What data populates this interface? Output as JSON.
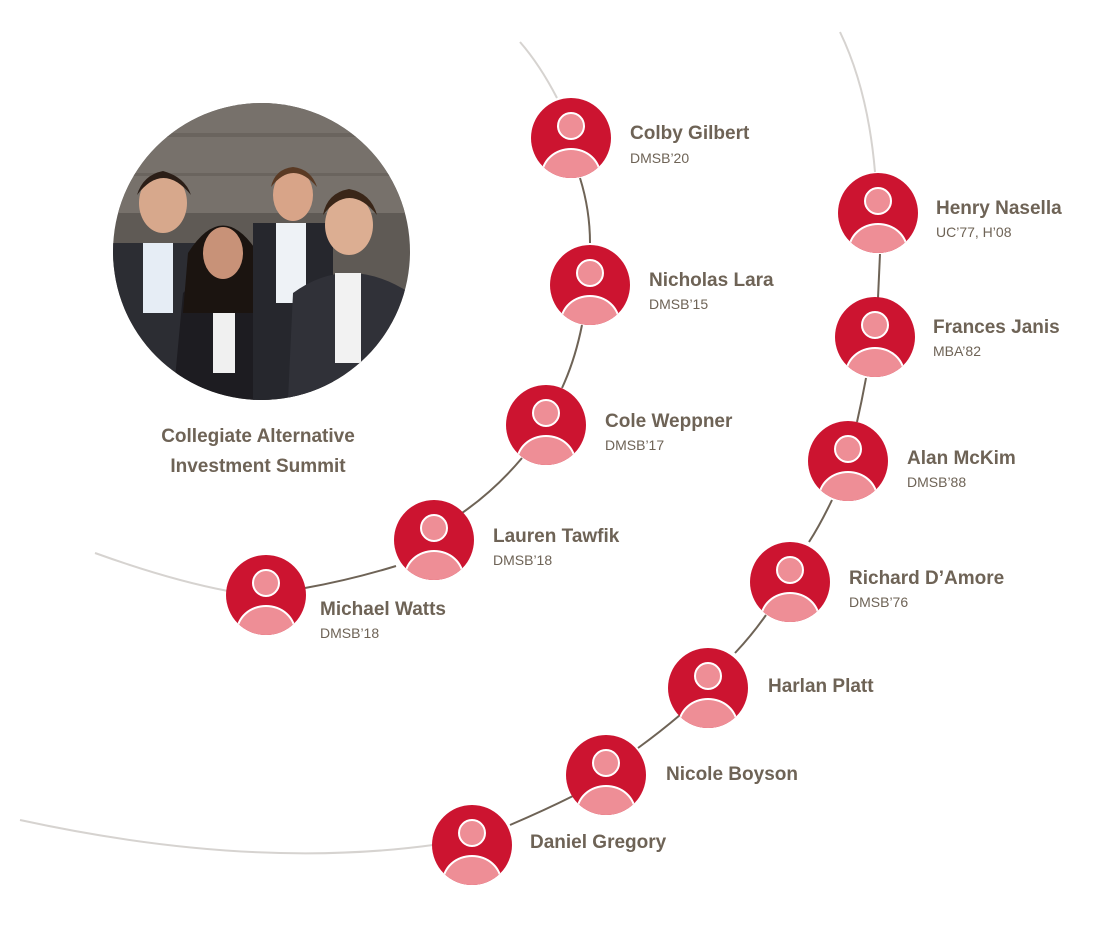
{
  "caption": {
    "line1": "Collegiate Alternative",
    "line2": "Investment Summit"
  },
  "colors": {
    "avatar_fill": "#cc1430",
    "avatar_figure": "#ee8e96",
    "text": "#6e6356",
    "connector": "#6e6356",
    "outer_arc": "#d6d3d0"
  },
  "icons": {
    "avatar": "person-silhouette-icon"
  },
  "left_chain": [
    {
      "name": "Colby Gilbert",
      "class_year": "DMSB’20"
    },
    {
      "name": "Nicholas Lara",
      "class_year": "DMSB’15"
    },
    {
      "name": "Cole Weppner",
      "class_year": "DMSB’17"
    },
    {
      "name": "Lauren Tawfik",
      "class_year": "DMSB’18"
    },
    {
      "name": "Michael Watts",
      "class_year": "DMSB’18"
    }
  ],
  "right_chain": [
    {
      "name": "Henry Nasella",
      "class_year": "UC’77, H’08"
    },
    {
      "name": "Frances Janis",
      "class_year": "MBA’82"
    },
    {
      "name": "Alan McKim",
      "class_year": "DMSB’88"
    },
    {
      "name": "Richard D’Amore",
      "class_year": "DMSB’76"
    },
    {
      "name": "Harlan Platt",
      "class_year": ""
    },
    {
      "name": "Nicole Boyson",
      "class_year": ""
    },
    {
      "name": "Daniel Gregory",
      "class_year": ""
    }
  ]
}
